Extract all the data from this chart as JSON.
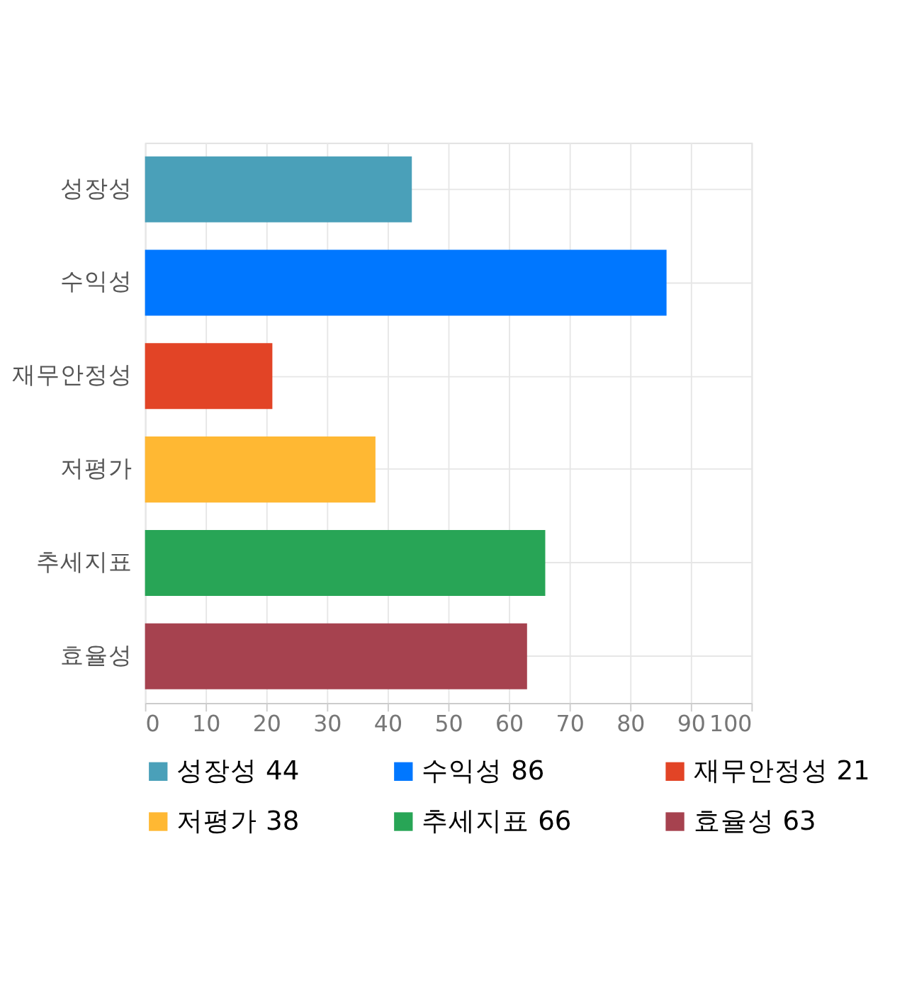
{
  "chart_data": {
    "type": "bar",
    "orientation": "horizontal",
    "categories": [
      "성장성",
      "수익성",
      "재무안정성",
      "저평가",
      "추세지표",
      "효율성"
    ],
    "series": [
      {
        "name": "성장성 44",
        "color": "#4aa0b9",
        "values": [
          44,
          null,
          null,
          null,
          null,
          null
        ]
      },
      {
        "name": "수익성 86",
        "color": "#0077ff",
        "values": [
          null,
          86,
          null,
          null,
          null,
          null
        ]
      },
      {
        "name": "재무안정성 21",
        "color": "#e24426",
        "values": [
          null,
          null,
          21,
          null,
          null,
          null
        ]
      },
      {
        "name": "저평가 38",
        "color": "#ffb833",
        "values": [
          null,
          null,
          null,
          38,
          null,
          null
        ]
      },
      {
        "name": "추세지표 66",
        "color": "#28a556",
        "values": [
          null,
          null,
          null,
          null,
          66,
          null
        ]
      },
      {
        "name": "효율성 63",
        "color": "#a6424f",
        "values": [
          null,
          null,
          null,
          null,
          null,
          63
        ]
      }
    ],
    "xlim": [
      0,
      100
    ],
    "xticks": [
      0,
      10,
      20,
      30,
      40,
      50,
      60,
      70,
      80,
      90,
      100
    ],
    "grid": true,
    "legend": "bottom"
  }
}
